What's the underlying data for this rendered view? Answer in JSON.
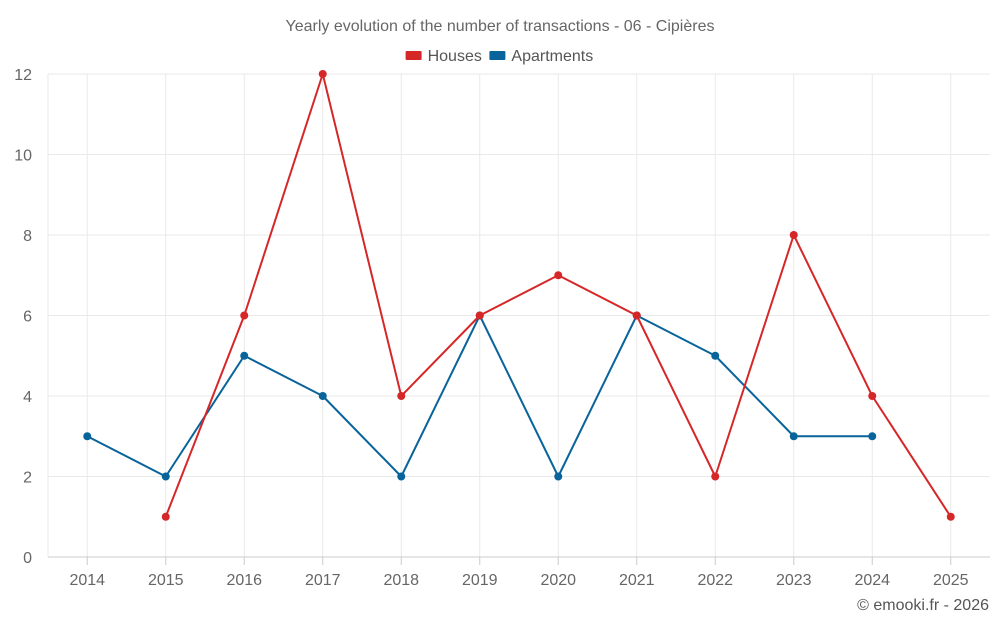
{
  "chart_data": {
    "type": "line",
    "title": "Yearly evolution of the number of transactions - 06 - Cipières",
    "categories": [
      "2014",
      "2015",
      "2016",
      "2017",
      "2018",
      "2019",
      "2020",
      "2021",
      "2022",
      "2023",
      "2024",
      "2025"
    ],
    "ylim": [
      0,
      12
    ],
    "yticks": [
      0,
      2,
      4,
      6,
      8,
      10,
      12
    ],
    "grid": true,
    "legend_position": "top-center",
    "series": [
      {
        "name": "Houses",
        "color": "#d62728",
        "values": [
          null,
          1,
          6,
          12,
          4,
          6,
          7,
          6,
          2,
          8,
          4,
          1
        ]
      },
      {
        "name": "Apartments",
        "color": "#08649a",
        "values": [
          3,
          2,
          5,
          4,
          2,
          6,
          2,
          6,
          5,
          3,
          3,
          null
        ]
      }
    ],
    "xlabel": "",
    "ylabel": ""
  },
  "credit": "© emooki.fr - 2026"
}
